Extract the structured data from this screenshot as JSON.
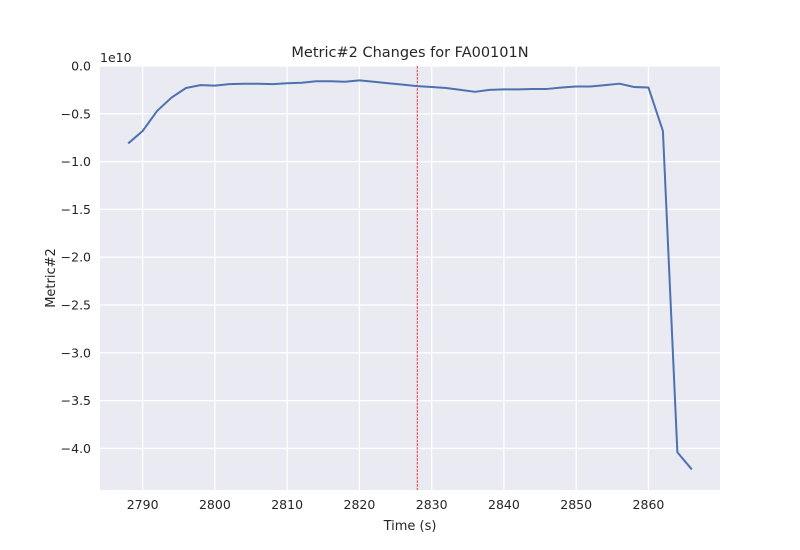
{
  "chart_data": {
    "type": "line",
    "title": "Metric#2 Changes for FA00101N",
    "xlabel": "Time (s)",
    "ylabel": "Metric#2",
    "y_offset_label": "1e10",
    "y_scale_factor": 10000000000,
    "xlim": [
      2784.1,
      2869.9
    ],
    "ylim": [
      -4.435,
      0.0
    ],
    "x_ticks": [
      2790,
      2800,
      2810,
      2820,
      2830,
      2840,
      2850,
      2860
    ],
    "x_tick_labels": [
      "2790",
      "2800",
      "2810",
      "2820",
      "2830",
      "2840",
      "2850",
      "2860"
    ],
    "y_ticks": [
      0.0,
      -0.5,
      -1.0,
      -1.5,
      -2.0,
      -2.5,
      -3.0,
      -3.5,
      -4.0
    ],
    "y_tick_labels": [
      "0.0",
      "−0.5",
      "−1.0",
      "−1.5",
      "−2.0",
      "−2.5",
      "−3.0",
      "−3.5",
      "−4.0"
    ],
    "grid": true,
    "line_color": "#4c72b0",
    "vline": {
      "x": 2828,
      "color": "#ff0000",
      "style": "dashed"
    },
    "series": [
      {
        "x": [
          2788,
          2790,
          2792,
          2794,
          2796,
          2798,
          2800,
          2802,
          2804,
          2806,
          2808,
          2810,
          2812,
          2814,
          2816,
          2818,
          2820,
          2822,
          2824,
          2826,
          2828,
          2830,
          2832,
          2834,
          2836,
          2838,
          2840,
          2842,
          2844,
          2846,
          2848,
          2850,
          2852,
          2854,
          2856,
          2858,
          2860,
          2862,
          2864,
          2866
        ],
        "y": [
          -0.81,
          -0.68,
          -0.47,
          -0.33,
          -0.23,
          -0.2,
          -0.205,
          -0.19,
          -0.185,
          -0.185,
          -0.19,
          -0.18,
          -0.175,
          -0.16,
          -0.16,
          -0.165,
          -0.15,
          -0.165,
          -0.18,
          -0.195,
          -0.21,
          -0.22,
          -0.23,
          -0.25,
          -0.27,
          -0.25,
          -0.245,
          -0.245,
          -0.24,
          -0.24,
          -0.225,
          -0.215,
          -0.215,
          -0.2,
          -0.185,
          -0.22,
          -0.225,
          -0.68,
          -4.04,
          -4.22
        ]
      }
    ]
  }
}
